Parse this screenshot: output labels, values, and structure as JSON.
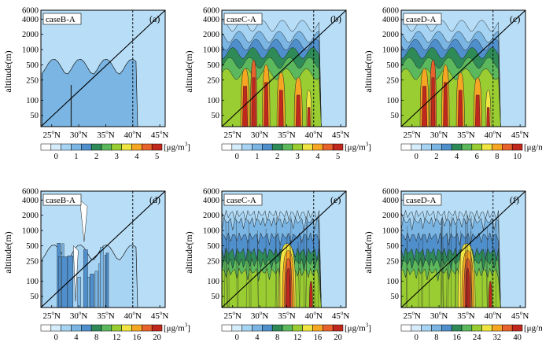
{
  "figure": {
    "ylabel": "altitude(m)",
    "unit_prefix": "[",
    "unit_main": "μg/m",
    "unit_sup": "3",
    "unit_suffix": "]"
  },
  "chart_data": [
    {
      "id": "a",
      "type": "heatmap",
      "panel_label": "(a)",
      "case_label": "caseB-A",
      "x_ticks": [
        {
          "deg": "25",
          "sup": "o",
          "dir": "N"
        },
        {
          "deg": "30",
          "sup": "o",
          "dir": "N"
        },
        {
          "deg": "35",
          "sup": "o",
          "dir": "N"
        },
        {
          "deg": "40",
          "sup": "o",
          "dir": "N"
        },
        {
          "deg": "45",
          "sup": "o",
          "dir": "N"
        }
      ],
      "y_ticks": [
        "6000",
        "4000",
        "2000",
        "1000",
        "500",
        "250",
        "100",
        "50"
      ],
      "xlim": [
        23,
        46
      ],
      "ylim": [
        30,
        6000
      ],
      "yscale": "log",
      "dashed_line_lat": 40,
      "colorbar": {
        "ticks": [
          "0",
          "1",
          "2",
          "3",
          "4",
          "5"
        ],
        "colors": [
          "#ffffff",
          "#d5ecfb",
          "#a7d4f3",
          "#7ab5e3",
          "#4f8fcc",
          "#2e8b57",
          "#5cb85c",
          "#9acd32",
          "#f0e442",
          "#f5a623",
          "#e8622c",
          "#c0281e"
        ]
      },
      "background": "#b8def7",
      "regions": [
        {
          "fill": "#7ab5e3",
          "lat_range": [
            23.5,
            40.8
          ],
          "top_altitude": 650,
          "bottom_altitude": 30
        }
      ]
    },
    {
      "id": "b",
      "type": "heatmap",
      "panel_label": "(b)",
      "case_label": "caseC-A",
      "x_ticks": [
        {
          "deg": "25",
          "sup": "o",
          "dir": "N"
        },
        {
          "deg": "30",
          "sup": "o",
          "dir": "N"
        },
        {
          "deg": "35",
          "sup": "o",
          "dir": "N"
        },
        {
          "deg": "40",
          "sup": "o",
          "dir": "N"
        },
        {
          "deg": "45",
          "sup": "o",
          "dir": "N"
        }
      ],
      "y_ticks": [
        "6000",
        "4000",
        "2000",
        "1000",
        "500",
        "250",
        "100",
        "50"
      ],
      "xlim": [
        23,
        46
      ],
      "ylim": [
        30,
        6000
      ],
      "yscale": "log",
      "dashed_line_lat": 40,
      "colorbar": {
        "ticks": [
          "0",
          "1",
          "2",
          "3",
          "4",
          "5"
        ],
        "colors": [
          "#ffffff",
          "#d5ecfb",
          "#a7d4f3",
          "#7ab5e3",
          "#4f8fcc",
          "#2e8b57",
          "#5cb85c",
          "#9acd32",
          "#f0e442",
          "#f5a623",
          "#e8622c",
          "#c0281e"
        ]
      },
      "background": "#b8def7"
    },
    {
      "id": "c",
      "type": "heatmap",
      "panel_label": "(c)",
      "case_label": "caseD-A",
      "x_ticks": [
        {
          "deg": "25",
          "sup": "o",
          "dir": "N"
        },
        {
          "deg": "30",
          "sup": "o",
          "dir": "N"
        },
        {
          "deg": "35",
          "sup": "o",
          "dir": "N"
        },
        {
          "deg": "40",
          "sup": "o",
          "dir": "N"
        },
        {
          "deg": "45",
          "sup": "o",
          "dir": "N"
        }
      ],
      "y_ticks": [
        "6000",
        "4000",
        "2000",
        "1000",
        "500",
        "250",
        "100",
        "50"
      ],
      "xlim": [
        23,
        46
      ],
      "ylim": [
        30,
        6000
      ],
      "yscale": "log",
      "dashed_line_lat": 40,
      "colorbar": {
        "ticks": [
          "0",
          "2",
          "4",
          "6",
          "8",
          "10"
        ],
        "colors": [
          "#ffffff",
          "#d5ecfb",
          "#a7d4f3",
          "#7ab5e3",
          "#4f8fcc",
          "#2e8b57",
          "#5cb85c",
          "#9acd32",
          "#f0e442",
          "#f5a623",
          "#e8622c",
          "#c0281e"
        ]
      },
      "background": "#b8def7"
    },
    {
      "id": "d",
      "type": "heatmap",
      "panel_label": "(d)",
      "case_label": "caseB-A",
      "x_ticks": [
        {
          "deg": "25",
          "sup": "o",
          "dir": "N"
        },
        {
          "deg": "30",
          "sup": "o",
          "dir": "N"
        },
        {
          "deg": "35",
          "sup": "o",
          "dir": "N"
        },
        {
          "deg": "40",
          "sup": "o",
          "dir": "N"
        },
        {
          "deg": "45",
          "sup": "o",
          "dir": "N"
        }
      ],
      "y_ticks": [
        "6000",
        "4000",
        "2000",
        "1000",
        "500",
        "250",
        "100",
        "50"
      ],
      "xlim": [
        23,
        46
      ],
      "ylim": [
        30,
        6000
      ],
      "yscale": "log",
      "dashed_line_lat": 40,
      "colorbar": {
        "ticks": [
          "0",
          "4",
          "8",
          "12",
          "16",
          "20"
        ],
        "colors": [
          "#ffffff",
          "#d5ecfb",
          "#a7d4f3",
          "#7ab5e3",
          "#4f8fcc",
          "#2e8b57",
          "#5cb85c",
          "#9acd32",
          "#f0e442",
          "#f5a623",
          "#e8622c",
          "#c0281e"
        ]
      },
      "background": "#b8def7"
    },
    {
      "id": "e",
      "type": "heatmap",
      "panel_label": "(e)",
      "case_label": "caseC-A",
      "x_ticks": [
        {
          "deg": "25",
          "sup": "o",
          "dir": "N"
        },
        {
          "deg": "30",
          "sup": "o",
          "dir": "N"
        },
        {
          "deg": "35",
          "sup": "o",
          "dir": "N"
        },
        {
          "deg": "40",
          "sup": "o",
          "dir": "N"
        },
        {
          "deg": "45",
          "sup": "o",
          "dir": "N"
        }
      ],
      "y_ticks": [
        "6000",
        "4000",
        "2000",
        "1000",
        "500",
        "250",
        "100",
        "50"
      ],
      "xlim": [
        23,
        46
      ],
      "ylim": [
        30,
        6000
      ],
      "yscale": "log",
      "dashed_line_lat": 40,
      "colorbar": {
        "ticks": [
          "0",
          "4",
          "8",
          "12",
          "16",
          "20"
        ],
        "colors": [
          "#ffffff",
          "#d5ecfb",
          "#a7d4f3",
          "#7ab5e3",
          "#4f8fcc",
          "#2e8b57",
          "#5cb85c",
          "#9acd32",
          "#f0e442",
          "#f5a623",
          "#e8622c",
          "#c0281e"
        ]
      },
      "background": "#b8def7"
    },
    {
      "id": "f",
      "type": "heatmap",
      "panel_label": "(f)",
      "case_label": "caseD-A",
      "x_ticks": [
        {
          "deg": "25",
          "sup": "o",
          "dir": "N"
        },
        {
          "deg": "30",
          "sup": "o",
          "dir": "N"
        },
        {
          "deg": "35",
          "sup": "o",
          "dir": "N"
        },
        {
          "deg": "40",
          "sup": "o",
          "dir": "N"
        },
        {
          "deg": "45",
          "sup": "o",
          "dir": "N"
        }
      ],
      "y_ticks": [
        "6000",
        "4000",
        "2000",
        "1000",
        "500",
        "250",
        "100",
        "50"
      ],
      "xlim": [
        23,
        46
      ],
      "ylim": [
        30,
        6000
      ],
      "yscale": "log",
      "dashed_line_lat": 40,
      "colorbar": {
        "ticks": [
          "0",
          "8",
          "16",
          "24",
          "32",
          "40"
        ],
        "colors": [
          "#ffffff",
          "#d5ecfb",
          "#a7d4f3",
          "#7ab5e3",
          "#4f8fcc",
          "#2e8b57",
          "#5cb85c",
          "#9acd32",
          "#f0e442",
          "#f5a623",
          "#e8622c",
          "#c0281e"
        ]
      },
      "background": "#b8def7"
    }
  ]
}
